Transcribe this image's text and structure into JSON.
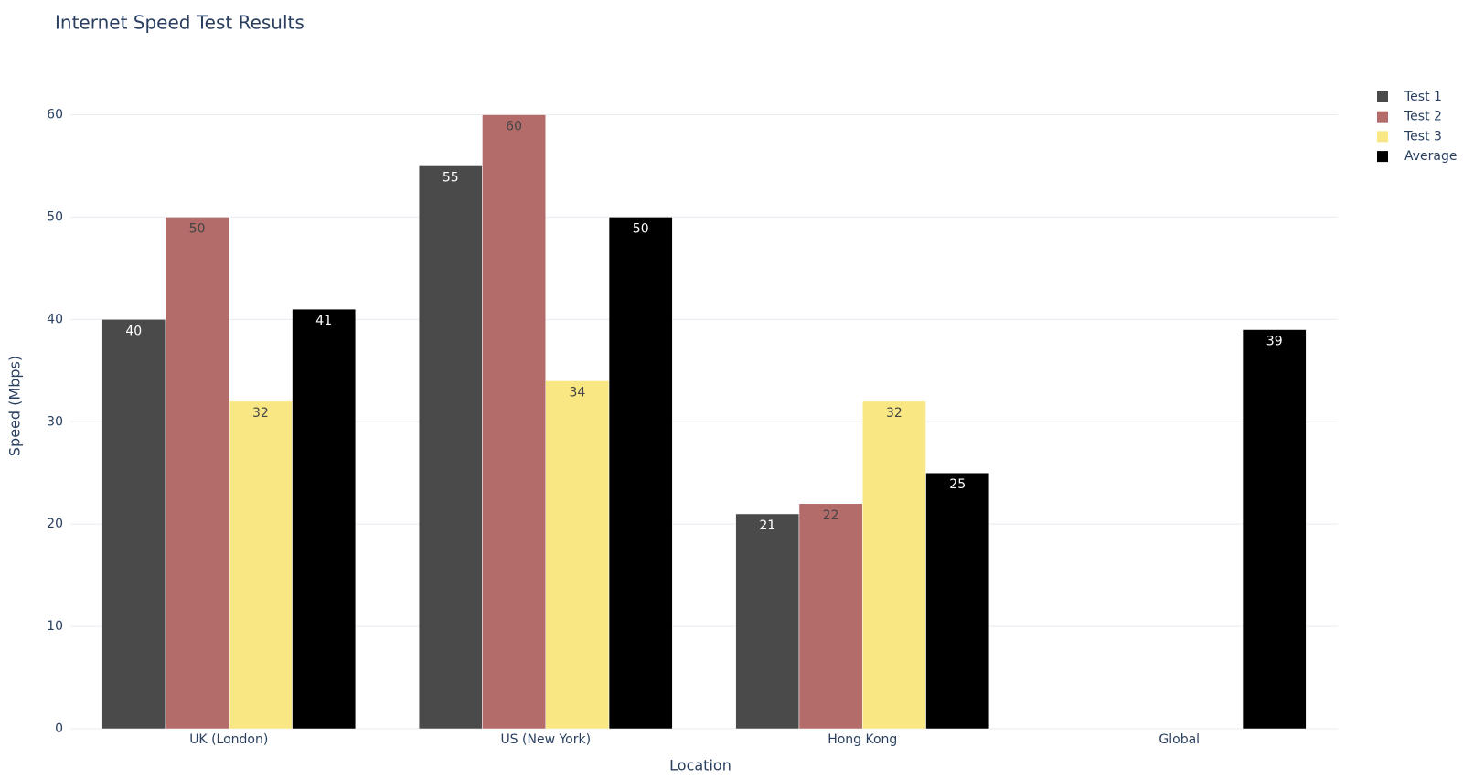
{
  "chart_data": {
    "type": "bar",
    "title": "Internet Speed Test Results",
    "x_label": "Location",
    "y_label": "Speed (Mbps)",
    "categories": [
      "UK (London)",
      "US (New York)",
      "Hong Kong",
      "Global"
    ],
    "series": [
      {
        "name": "Test 1",
        "color": "#4a4a4a",
        "label_color": "#ffffff",
        "values": [
          40,
          55,
          21,
          null
        ]
      },
      {
        "name": "Test 2",
        "color": "#b36c6a",
        "label_color": "#444444",
        "values": [
          50,
          60,
          22,
          null
        ]
      },
      {
        "name": "Test 3",
        "color": "#f9e784",
        "label_color": "#444444",
        "values": [
          32,
          34,
          32,
          null
        ]
      },
      {
        "name": "Average",
        "color": "#000000",
        "label_color": "#ffffff",
        "values": [
          41,
          50,
          25,
          39
        ]
      }
    ],
    "ylim": [
      0,
      60
    ],
    "yticks": [
      0,
      10,
      20,
      30,
      40,
      50,
      60
    ],
    "grid": true,
    "legend": "top-right"
  }
}
